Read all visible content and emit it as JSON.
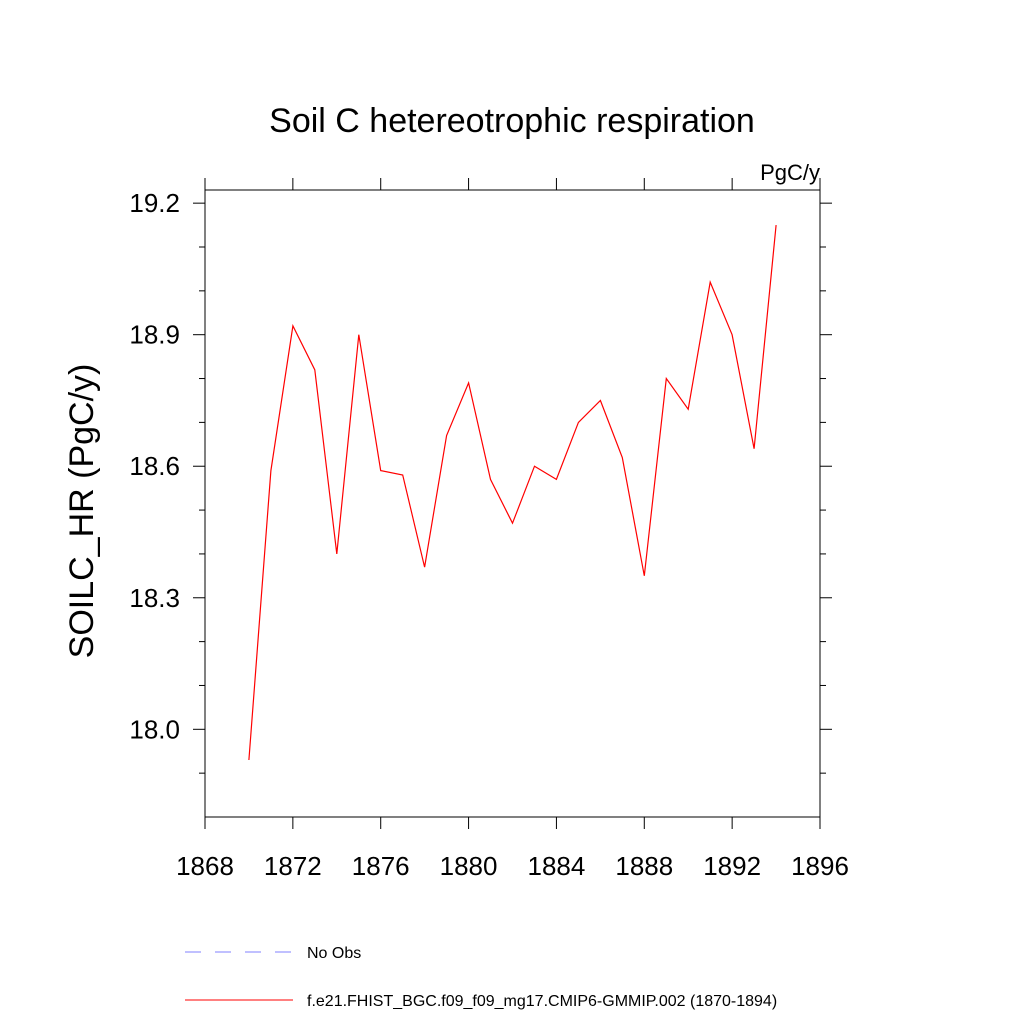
{
  "chart_data": {
    "type": "line",
    "title": "Soil C hetereotrophic respiration",
    "units_label": "PgC/y",
    "ylabel": "SOILC_HR  (PgC/y)",
    "xlabel": "",
    "xlim": [
      1868,
      1896
    ],
    "ylim": [
      17.8,
      19.23
    ],
    "x_ticks": [
      1868,
      1872,
      1876,
      1880,
      1884,
      1888,
      1892,
      1896
    ],
    "x_tick_labels": [
      "1868",
      "1872",
      "1876",
      "1880",
      "1884",
      "1888",
      "1892",
      "1896"
    ],
    "y_ticks": [
      18.0,
      18.3,
      18.6,
      18.9,
      19.2
    ],
    "y_tick_labels": [
      "18.0",
      "18.3",
      "18.6",
      "18.9",
      "19.2"
    ],
    "grid": false,
    "legend_placement": "bottom",
    "series": [
      {
        "name": "f.e21.FHIST_BGC.f09_f09_mg17.CMIP6-GMMIP.002 (1870-1894)",
        "color": "#ff0000",
        "style": "solid",
        "x": [
          1870,
          1871,
          1872,
          1873,
          1874,
          1875,
          1876,
          1877,
          1878,
          1879,
          1880,
          1881,
          1882,
          1883,
          1884,
          1885,
          1886,
          1887,
          1888,
          1889,
          1890,
          1891,
          1892,
          1893,
          1894
        ],
        "y": [
          17.93,
          18.59,
          18.92,
          18.82,
          18.4,
          18.9,
          18.59,
          18.58,
          18.37,
          18.67,
          18.79,
          18.57,
          18.47,
          18.6,
          18.57,
          18.7,
          18.75,
          18.62,
          18.35,
          18.8,
          18.73,
          19.02,
          18.9,
          18.64,
          19.15
        ]
      }
    ],
    "legend": [
      {
        "label": "No Obs",
        "color": "#8080ff",
        "style": "dashed"
      },
      {
        "label": "f.e21.FHIST_BGC.f09_f09_mg17.CMIP6-GMMIP.002 (1870-1894)",
        "color": "#ff0000",
        "style": "solid"
      }
    ]
  }
}
